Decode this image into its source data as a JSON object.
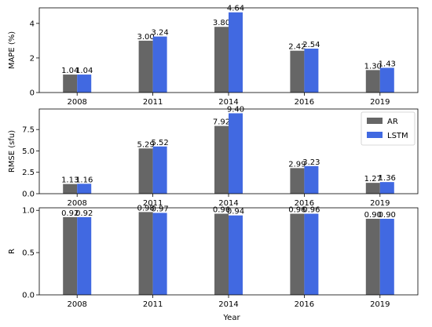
{
  "figure": {
    "xlabel": "Year",
    "legend_position": "top-right",
    "colors": {
      "AR": "#666666",
      "LSTM": "#4169E1"
    }
  },
  "chart_data": [
    {
      "type": "bar",
      "ylabel": "MAPE (%)",
      "ylim": [
        0,
        4.9
      ],
      "yticks": [
        0,
        2,
        4
      ],
      "ytick_labels": [
        "0",
        "2",
        "4"
      ],
      "categories": [
        "2008",
        "2011",
        "2014",
        "2016",
        "2019"
      ],
      "series": [
        {
          "name": "AR",
          "values": [
            1.04,
            3.0,
            3.8,
            2.42,
            1.3
          ],
          "labels": [
            "1.04",
            "3.00",
            "3.80",
            "2.42",
            "1.30"
          ]
        },
        {
          "name": "LSTM",
          "values": [
            1.04,
            3.24,
            4.64,
            2.54,
            1.43
          ],
          "labels": [
            "1.04",
            "3.24",
            "4.64",
            "2.54",
            "1.43"
          ]
        }
      ],
      "legend": false,
      "xlabel": ""
    },
    {
      "type": "bar",
      "ylabel": "RMSE (sfu)",
      "ylim": [
        0,
        9.9
      ],
      "yticks": [
        0,
        2.5,
        5.0,
        7.5
      ],
      "ytick_labels": [
        "0.0",
        "2.5",
        "5.0",
        "7.5"
      ],
      "categories": [
        "2008",
        "2011",
        "2014",
        "2016",
        "2019"
      ],
      "series": [
        {
          "name": "AR",
          "values": [
            1.13,
            5.29,
            7.92,
            2.99,
            1.27
          ],
          "labels": [
            "1.13",
            "5.29",
            "7.92",
            "2.99",
            "1.27"
          ]
        },
        {
          "name": "LSTM",
          "values": [
            1.16,
            5.52,
            9.4,
            3.23,
            1.36
          ],
          "labels": [
            "1.16",
            "5.52",
            "9.40",
            "3.23",
            "1.36"
          ]
        }
      ],
      "legend": true,
      "xlabel": ""
    },
    {
      "type": "bar",
      "ylabel": "R",
      "ylim": [
        0,
        1.03
      ],
      "yticks": [
        0,
        0.5,
        1.0
      ],
      "ytick_labels": [
        "0.0",
        "0.5",
        "1.0"
      ],
      "categories": [
        "2008",
        "2011",
        "2014",
        "2016",
        "2019"
      ],
      "series": [
        {
          "name": "AR",
          "values": [
            0.92,
            0.98,
            0.96,
            0.96,
            0.9
          ],
          "labels": [
            "0.92",
            "0.98",
            "0.96",
            "0.96",
            "0.90"
          ]
        },
        {
          "name": "LSTM",
          "values": [
            0.92,
            0.97,
            0.94,
            0.96,
            0.9
          ],
          "labels": [
            "0.92",
            "0.97",
            "0.94",
            "0.96",
            "0.90"
          ]
        }
      ],
      "legend": false,
      "xlabel": "Year"
    }
  ]
}
